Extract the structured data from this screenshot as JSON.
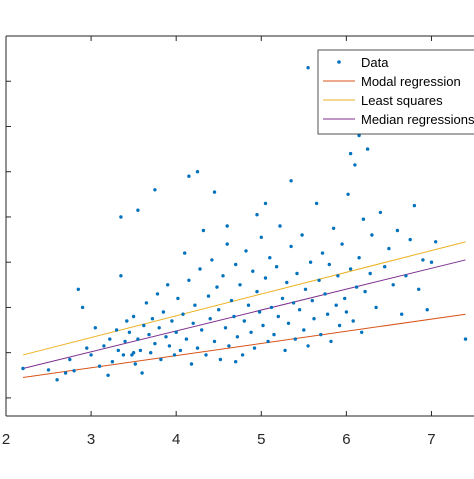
{
  "chart_data": {
    "type": "scatter",
    "title": "",
    "xlabel": "",
    "ylabel": "",
    "xlim": [
      2,
      7.5
    ],
    "ylim": [
      -0.4,
      8
    ],
    "xticks": [
      2,
      3,
      4,
      5,
      6,
      7
    ],
    "xtick_labels": [
      "2",
      "3",
      "4",
      "5",
      "6",
      "7"
    ],
    "yticks": [
      0,
      1,
      2,
      3,
      4,
      5,
      6,
      7
    ],
    "ytick_labels": [
      "",
      "",
      "",
      "",
      "",
      "",
      "",
      ""
    ],
    "grid": false,
    "legend_position": "top-right",
    "colors": {
      "data": "#0072BD",
      "modal": "#D95319",
      "least_squares": "#EDB120",
      "median": "#7E2F8E",
      "axes": "#262626"
    },
    "legend": [
      {
        "label": "Data",
        "kind": "marker",
        "color": "#0072BD"
      },
      {
        "label": "Modal regression",
        "kind": "line",
        "color": "#D95319"
      },
      {
        "label": "Least squares",
        "kind": "line",
        "color": "#EDB120"
      },
      {
        "label": "Median regressions",
        "kind": "line",
        "color": "#7E2F8E"
      }
    ],
    "series": [
      {
        "name": "Modal regression",
        "kind": "line",
        "color": "#D95319",
        "x": [
          2.2,
          7.4
        ],
        "y": [
          0.45,
          1.85
        ]
      },
      {
        "name": "Least squares",
        "kind": "line",
        "color": "#EDB120",
        "x": [
          2.2,
          7.4
        ],
        "y": [
          0.95,
          3.45
        ]
      },
      {
        "name": "Median regressions",
        "kind": "line",
        "color": "#7E2F8E",
        "x": [
          2.2,
          7.4
        ],
        "y": [
          0.65,
          3.05
        ]
      },
      {
        "name": "Data",
        "kind": "scatter",
        "color": "#0072BD",
        "points": [
          [
            2.2,
            0.65
          ],
          [
            2.5,
            0.62
          ],
          [
            2.6,
            0.4
          ],
          [
            2.7,
            0.55
          ],
          [
            2.75,
            0.85
          ],
          [
            2.8,
            0.6
          ],
          [
            2.85,
            2.4
          ],
          [
            2.9,
            2.0
          ],
          [
            2.95,
            1.1
          ],
          [
            3.0,
            0.95
          ],
          [
            3.05,
            1.55
          ],
          [
            3.1,
            0.7
          ],
          [
            3.15,
            1.15
          ],
          [
            3.2,
            0.5
          ],
          [
            3.22,
            1.3
          ],
          [
            3.25,
            0.8
          ],
          [
            3.3,
            1.5
          ],
          [
            3.32,
            1.05
          ],
          [
            3.35,
            2.7
          ],
          [
            3.38,
            0.95
          ],
          [
            3.4,
            1.25
          ],
          [
            3.42,
            1.7
          ],
          [
            3.45,
            1.45
          ],
          [
            3.48,
            0.95
          ],
          [
            3.5,
            1.8
          ],
          [
            3.52,
            0.75
          ],
          [
            3.55,
            1.3
          ],
          [
            3.58,
            1.05
          ],
          [
            3.6,
            0.55
          ],
          [
            3.62,
            1.6
          ],
          [
            3.65,
            2.1
          ],
          [
            3.68,
            1.4
          ],
          [
            3.7,
            1.0
          ],
          [
            3.72,
            1.75
          ],
          [
            3.75,
            1.2
          ],
          [
            3.78,
            2.3
          ],
          [
            3.8,
            1.55
          ],
          [
            3.82,
            0.85
          ],
          [
            3.85,
            1.9
          ],
          [
            3.88,
            1.35
          ],
          [
            3.9,
            2.5
          ],
          [
            3.92,
            1.15
          ],
          [
            3.95,
            1.7
          ],
          [
            3.98,
            0.95
          ],
          [
            4.0,
            1.45
          ],
          [
            4.02,
            2.2
          ],
          [
            4.05,
            1.05
          ],
          [
            4.08,
            1.85
          ],
          [
            4.1,
            3.2
          ],
          [
            4.12,
            1.3
          ],
          [
            4.15,
            2.6
          ],
          [
            4.18,
            0.75
          ],
          [
            4.2,
            1.65
          ],
          [
            4.22,
            2.05
          ],
          [
            4.25,
            1.1
          ],
          [
            4.28,
            2.85
          ],
          [
            4.3,
            1.5
          ],
          [
            4.32,
            3.7
          ],
          [
            4.35,
            0.95
          ],
          [
            4.38,
            2.25
          ],
          [
            4.4,
            1.75
          ],
          [
            4.42,
            3.05
          ],
          [
            4.45,
            1.25
          ],
          [
            4.48,
            2.45
          ],
          [
            4.5,
            1.95
          ],
          [
            4.52,
            0.85
          ],
          [
            4.55,
            2.7
          ],
          [
            4.58,
            1.55
          ],
          [
            4.6,
            3.4
          ],
          [
            4.62,
            1.15
          ],
          [
            4.65,
            2.15
          ],
          [
            4.68,
            1.8
          ],
          [
            4.7,
            2.95
          ],
          [
            4.72,
            1.35
          ],
          [
            4.75,
            2.5
          ],
          [
            4.78,
            0.95
          ],
          [
            4.8,
            1.7
          ],
          [
            4.82,
            3.25
          ],
          [
            4.85,
            2.05
          ],
          [
            4.88,
            1.45
          ],
          [
            4.9,
            2.8
          ],
          [
            4.92,
            1.1
          ],
          [
            4.95,
            2.35
          ],
          [
            4.98,
            1.9
          ],
          [
            5.0,
            3.55
          ],
          [
            5.02,
            1.6
          ],
          [
            5.05,
            2.65
          ],
          [
            5.08,
            1.25
          ],
          [
            5.1,
            3.1
          ],
          [
            5.12,
            2.0
          ],
          [
            5.15,
            1.4
          ],
          [
            5.18,
            2.9
          ],
          [
            5.2,
            1.8
          ],
          [
            5.22,
            3.8
          ],
          [
            5.25,
            2.2
          ],
          [
            5.28,
            1.05
          ],
          [
            5.3,
            2.55
          ],
          [
            5.32,
            1.65
          ],
          [
            5.35,
            3.35
          ],
          [
            5.38,
            2.1
          ],
          [
            5.4,
            1.3
          ],
          [
            5.42,
            2.75
          ],
          [
            5.45,
            1.95
          ],
          [
            5.48,
            3.6
          ],
          [
            5.5,
            1.5
          ],
          [
            5.52,
            2.4
          ],
          [
            5.55,
            1.15
          ],
          [
            5.58,
            3.0
          ],
          [
            5.6,
            2.15
          ],
          [
            5.62,
            1.75
          ],
          [
            5.65,
            4.3
          ],
          [
            5.68,
            2.6
          ],
          [
            5.7,
            1.4
          ],
          [
            5.72,
            3.2
          ],
          [
            5.75,
            2.3
          ],
          [
            5.78,
            1.85
          ],
          [
            5.8,
            2.95
          ],
          [
            5.82,
            1.25
          ],
          [
            5.85,
            3.75
          ],
          [
            5.88,
            2.05
          ],
          [
            5.9,
            2.7
          ],
          [
            5.92,
            1.6
          ],
          [
            5.95,
            3.4
          ],
          [
            5.98,
            2.2
          ],
          [
            6.0,
            1.9
          ],
          [
            6.02,
            4.5
          ],
          [
            6.05,
            2.85
          ],
          [
            6.08,
            1.7
          ],
          [
            6.1,
            5.15
          ],
          [
            6.12,
            2.45
          ],
          [
            6.15,
            3.1
          ],
          [
            6.18,
            1.45
          ],
          [
            6.2,
            3.95
          ],
          [
            6.22,
            2.35
          ],
          [
            6.25,
            5.5
          ],
          [
            6.28,
            2.75
          ],
          [
            6.3,
            3.6
          ],
          [
            6.35,
            2.0
          ],
          [
            6.4,
            4.1
          ],
          [
            6.45,
            2.9
          ],
          [
            6.5,
            3.3
          ],
          [
            6.55,
            2.5
          ],
          [
            6.6,
            3.7
          ],
          [
            6.65,
            1.85
          ],
          [
            6.7,
            2.7
          ],
          [
            6.75,
            3.5
          ],
          [
            6.8,
            4.25
          ],
          [
            6.85,
            2.4
          ],
          [
            6.9,
            3.05
          ],
          [
            6.95,
            1.95
          ],
          [
            7.0,
            3.0
          ],
          [
            7.05,
            3.45
          ],
          [
            7.4,
            1.3
          ],
          [
            4.15,
            4.9
          ],
          [
            4.25,
            5.0
          ],
          [
            3.75,
            4.6
          ],
          [
            3.35,
            4.0
          ],
          [
            4.45,
            4.55
          ],
          [
            5.55,
            7.3
          ],
          [
            6.15,
            5.8
          ],
          [
            5.35,
            4.8
          ],
          [
            3.55,
            4.15
          ],
          [
            6.05,
            5.4
          ],
          [
            4.6,
            3.8
          ],
          [
            5.05,
            4.3
          ],
          [
            4.95,
            4.05
          ],
          [
            3.5,
            1.0
          ],
          [
            4.7,
            0.8
          ]
        ]
      }
    ]
  }
}
